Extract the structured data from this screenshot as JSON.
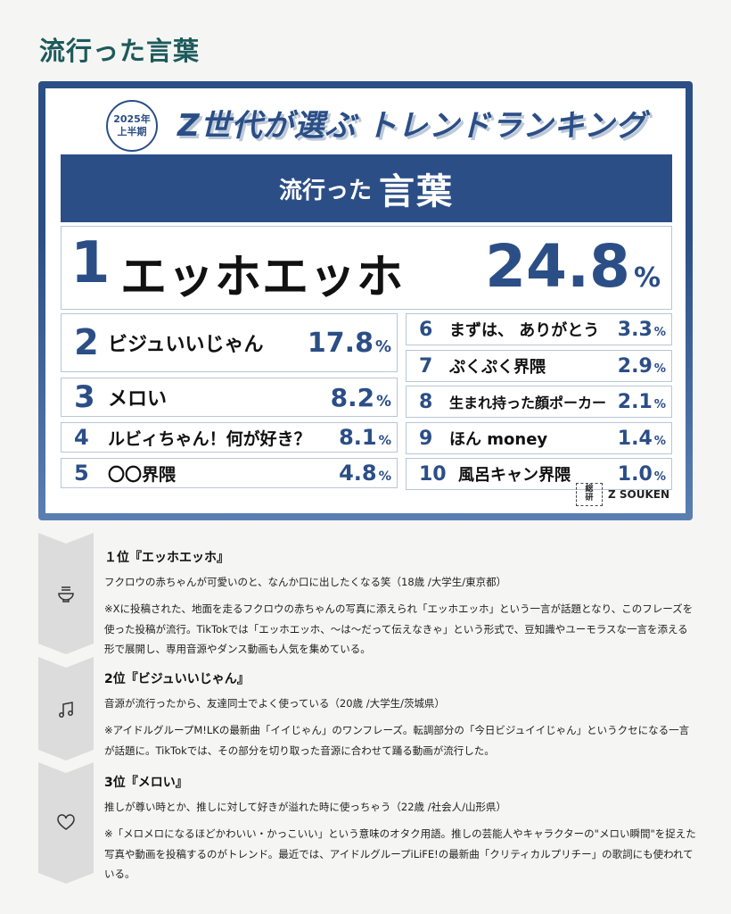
{
  "page_title": "流行った言葉",
  "card": {
    "badge_line1": "2025年",
    "badge_line2": "上半期",
    "heading_a": "Z世代が選ぶ",
    "heading_b": "トレンドランキング",
    "category_a": "流行った",
    "category_b": "言葉",
    "brand_mark_top": "総",
    "brand_mark_bottom": "研",
    "brand_name": "Z SOUKEN"
  },
  "ranking": [
    {
      "rank": "1",
      "word": "エッホエッホ",
      "value": "24.8",
      "unit": "%"
    },
    {
      "rank": "2",
      "word": "ビジュいいじゃん",
      "value": "17.8",
      "unit": "%"
    },
    {
      "rank": "3",
      "word": "メロい",
      "value": "8.2",
      "unit": "%"
    },
    {
      "rank": "4",
      "word": "ルビィちゃん！何が好き？",
      "value": "8.1",
      "unit": "%"
    },
    {
      "rank": "5",
      "word": "〇〇界隈",
      "value": "4.8",
      "unit": "%"
    },
    {
      "rank": "6",
      "word": "まずは、 ありがとう",
      "value": "3.3",
      "unit": "%"
    },
    {
      "rank": "7",
      "word": "ぷくぷく界隈",
      "value": "2.9",
      "unit": "%"
    },
    {
      "rank": "8",
      "word": "生まれ持った顔ポーカー",
      "value": "2.1",
      "unit": "%"
    },
    {
      "rank": "9",
      "word": "ほん money",
      "value": "1.4",
      "unit": "%"
    },
    {
      "rank": "10",
      "word": "風呂キャン界隈",
      "value": "1.0",
      "unit": "%"
    }
  ],
  "sections": [
    {
      "icon": "noodle-bowl-icon",
      "title": "１位『エッホエッホ』",
      "quote": "フクロウの赤ちゃんが可愛いのと、なんか口に出したくなる笑（18歳 /大学生/東京都）",
      "note": "※Xに投稿された、地面を走るフクロウの赤ちゃんの写真に添えられ「エッホエッホ」という一言が話題となり、このフレーズを使った投稿が流行。TikTokでは「エッホエッホ、〜は〜だって伝えなきゃ」という形式で、豆知識やユーモラスな一言を添える形で展開し、専用音源やダンス動画も人気を集めている。"
    },
    {
      "icon": "music-note-icon",
      "title": "2位『ビジュいいじゃん』",
      "quote": "音源が流行ったから、友達同士でよく使っている（20歳 /大学生/茨城県）",
      "note": "※アイドルグループM!LKの最新曲「イイじゃん」のワンフレーズ。転調部分の「今日ビジュイイじゃん」というクセになる一言が話題に。TikTokでは、その部分を切り取った音源に合わせて踊る動画が流行した。"
    },
    {
      "icon": "heart-icon",
      "title": "3位『メロい』",
      "quote": "推しが尊い時とか、推しに対して好きが溢れた時に使っちゃう（22歳 /社会人/山形県）",
      "note": "※「メロメロになるほどかわいい・かっこいい」という意味のオタク用語。推しの芸能人やキャラクターの\"メロい瞬間\"を捉えた写真や動画を投稿するのがトレンド。最近では、アイドルグループiLiFE!の最新曲「クリティカルプリチー」の歌詞にも使われている。"
    }
  ]
}
